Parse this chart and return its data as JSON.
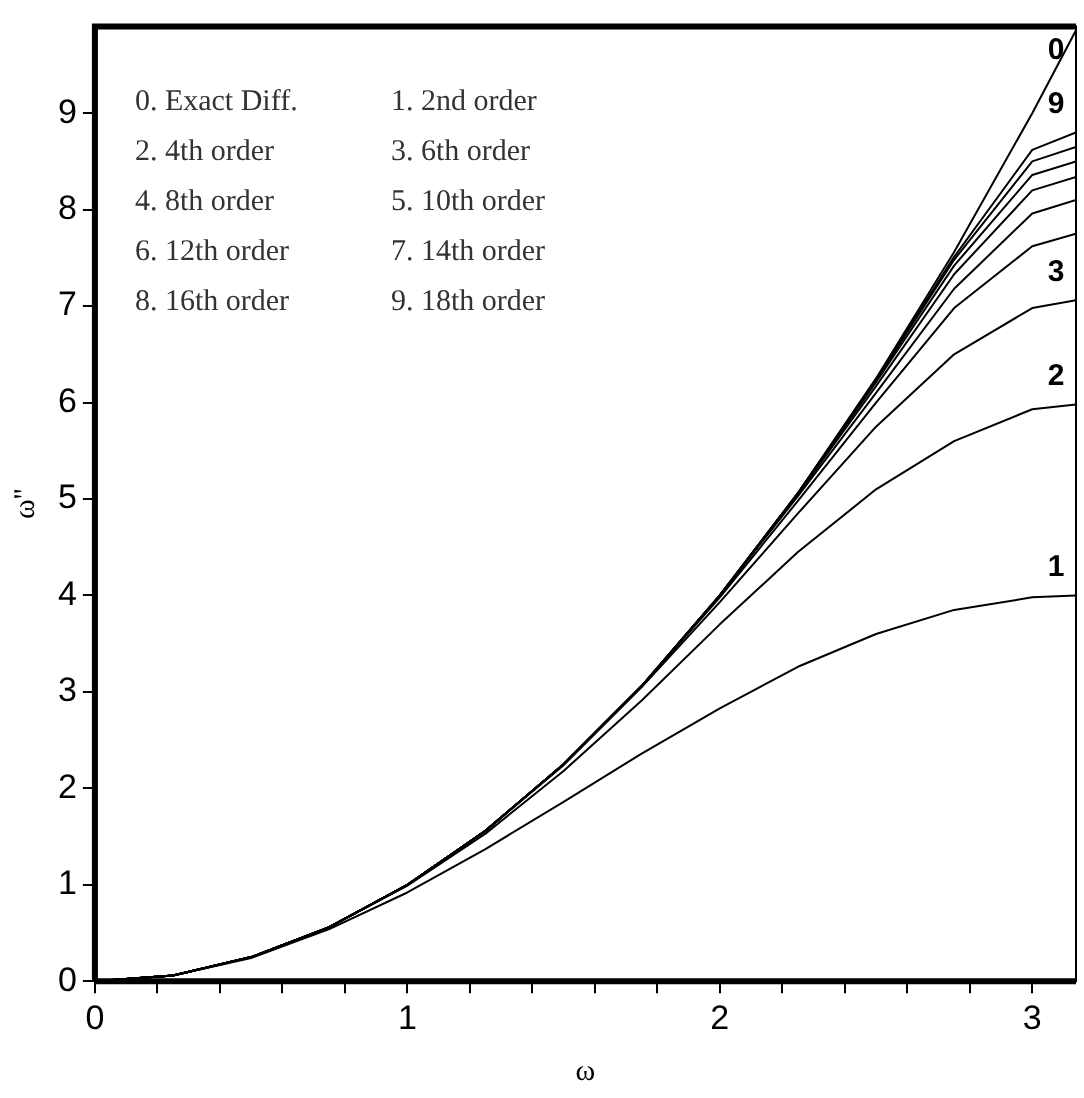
{
  "chart_data": {
    "type": "line",
    "xlabel": "ω",
    "ylabel": "ω''",
    "x": [
      0,
      0.25,
      0.5,
      0.75,
      1,
      1.25,
      1.5,
      1.75,
      2,
      2.25,
      2.5,
      2.75,
      3,
      3.14
    ],
    "xlim": [
      0,
      3.14
    ],
    "ylim": [
      0,
      9.9
    ],
    "xticks": [
      0,
      {
        "value": 0.2,
        "label": null
      },
      {
        "value": 0.4,
        "label": null
      },
      {
        "value": 0.6,
        "label": null
      },
      {
        "value": 0.8,
        "label": null
      },
      1,
      {
        "value": 1.2,
        "label": null
      },
      {
        "value": 1.4,
        "label": null
      },
      {
        "value": 1.6,
        "label": null
      },
      {
        "value": 1.8,
        "label": null
      },
      2,
      {
        "value": 2.2,
        "label": null
      },
      {
        "value": 2.4,
        "label": null
      },
      {
        "value": 2.6,
        "label": null
      },
      {
        "value": 2.8,
        "label": null
      },
      3
    ],
    "yticks": [
      0,
      1,
      2,
      3,
      4,
      5,
      6,
      7,
      8,
      9
    ],
    "grid": false,
    "series": [
      {
        "name": "0",
        "color": "#000000",
        "values": [
          0,
          0.06,
          0.25,
          0.56,
          1,
          1.56,
          2.25,
          3.06,
          4,
          5.06,
          6.25,
          7.56,
          9,
          9.86
        ]
      },
      {
        "name": "1",
        "color": "#000000",
        "values": [
          0,
          0.06,
          0.24,
          0.54,
          0.92,
          1.37,
          1.86,
          2.36,
          2.83,
          3.26,
          3.6,
          3.85,
          3.98,
          4.0
        ]
      },
      {
        "name": "2",
        "color": "#000000",
        "values": [
          0,
          0.06,
          0.25,
          0.56,
          0.99,
          1.53,
          2.18,
          2.91,
          3.7,
          4.45,
          5.1,
          5.6,
          5.93,
          5.98
        ]
      },
      {
        "name": "3",
        "color": "#000000",
        "values": [
          0,
          0.06,
          0.25,
          0.56,
          1,
          1.56,
          2.24,
          3.05,
          3.93,
          4.85,
          5.75,
          6.5,
          6.98,
          7.06
        ]
      },
      {
        "color": "#000000",
        "values": [
          0,
          0.06,
          0.25,
          0.56,
          1,
          1.56,
          2.25,
          3.06,
          3.98,
          4.98,
          6.0,
          6.98,
          7.62,
          7.75
        ]
      },
      {
        "color": "#000000",
        "values": [
          0,
          0.06,
          0.25,
          0.56,
          1,
          1.56,
          2.25,
          3.06,
          4.0,
          5.03,
          6.1,
          7.18,
          7.96,
          8.1
        ]
      },
      {
        "color": "#000000",
        "values": [
          0,
          0.06,
          0.25,
          0.56,
          1,
          1.56,
          2.25,
          3.06,
          4.0,
          5.05,
          6.17,
          7.33,
          8.2,
          8.34
        ]
      },
      {
        "color": "#000000",
        "values": [
          0,
          0.06,
          0.25,
          0.56,
          1,
          1.56,
          2.25,
          3.06,
          4.0,
          5.06,
          6.21,
          7.42,
          8.36,
          8.5
        ]
      },
      {
        "color": "#000000",
        "values": [
          0,
          0.06,
          0.25,
          0.56,
          1,
          1.56,
          2.25,
          3.06,
          4.0,
          5.06,
          6.23,
          7.48,
          8.5,
          8.65
        ]
      },
      {
        "name": "9",
        "color": "#000000",
        "values": [
          0,
          0.06,
          0.25,
          0.56,
          1,
          1.56,
          2.25,
          3.06,
          4.0,
          5.06,
          6.24,
          7.51,
          8.62,
          8.8
        ]
      }
    ],
    "annotations": [
      "0. Exact Diff.",
      "1. 2nd order",
      "2. 4th order",
      "3. 6th order",
      "4. 8th order",
      "5. 10th order",
      "6. 12th order",
      "7. 14th order",
      "8. 16th order",
      "9. 18th order"
    ]
  }
}
